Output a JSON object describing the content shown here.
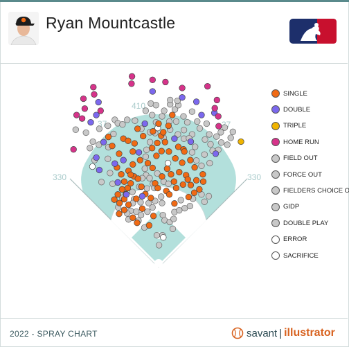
{
  "header": {
    "player_name": "Ryan Mountcastle"
  },
  "footer": {
    "caption": "2022 - SPRAY CHART",
    "brand_word": "savant",
    "brand_sep": "|",
    "brand_product": "illustrator"
  },
  "colors": {
    "field_fill": "#b3e0dc",
    "foul_line": "#a9bcbc",
    "infield": "#ffffff",
    "single": "#f06a14",
    "double": "#7b68ee",
    "triple": "#f0b400",
    "home_run": "#d6338a",
    "out": "#c8c8c8",
    "error": "#ffffff",
    "sacrifice": "#ffffff"
  },
  "chart_data": {
    "type": "scatter",
    "field_markers": [
      {
        "label": "330",
        "side": "left-line"
      },
      {
        "label": "330",
        "side": "right-line"
      },
      {
        "label": "410",
        "side": "center"
      },
      {
        "label": "37",
        "side": "left-center"
      },
      {
        "label": "37",
        "side": "right-center"
      }
    ],
    "legend": [
      {
        "key": "single",
        "label": "SINGLE",
        "color": "#f06a14"
      },
      {
        "key": "double",
        "label": "DOUBLE",
        "color": "#7b68ee"
      },
      {
        "key": "triple",
        "label": "TRIPLE",
        "color": "#f0b400"
      },
      {
        "key": "home_run",
        "label": "HOME RUN",
        "color": "#d6338a"
      },
      {
        "key": "field_out",
        "label": "FIELD OUT",
        "color": "#c8c8c8"
      },
      {
        "key": "force_out",
        "label": "FORCE OUT",
        "color": "#c8c8c8"
      },
      {
        "key": "fc_out",
        "label": "FIELDERS CHOICE OUT",
        "color": "#c8c8c8"
      },
      {
        "key": "gidp",
        "label": "GIDP",
        "color": "#c8c8c8"
      },
      {
        "key": "double_play",
        "label": "DOUBLE PLAY",
        "color": "#c8c8c8"
      },
      {
        "key": "error",
        "label": "ERROR",
        "color": "#ffffff"
      },
      {
        "key": "sacrifice",
        "label": "SACRIFICE",
        "color": "#ffffff"
      }
    ],
    "x_range": [
      -250,
      250
    ],
    "y_range": [
      0,
      450
    ],
    "series": [
      {
        "key": "home_run",
        "points": [
          [
            -191,
            345
          ],
          [
            -172,
            360
          ],
          [
            -175,
            383
          ],
          [
            -150,
            393
          ],
          [
            -152,
            410
          ],
          [
            -178,
            337
          ],
          [
            -135,
            355
          ],
          [
            -63,
            418
          ],
          [
            -62,
            435
          ],
          [
            -14,
            427
          ],
          [
            16,
            422
          ],
          [
            55,
            408
          ],
          [
            114,
            412
          ],
          [
            136,
            380
          ],
          [
            139,
            342
          ],
          [
            131,
            361
          ],
          [
            140,
            319
          ],
          [
            -198,
            265
          ]
        ]
      },
      {
        "key": "double",
        "points": [
          [
            -140,
            375
          ],
          [
            -145,
            345
          ],
          [
            -158,
            328
          ],
          [
            -128,
            282
          ],
          [
            -102,
            232
          ],
          [
            -82,
            240
          ],
          [
            -95,
            188
          ],
          [
            -75,
            160
          ],
          [
            -38,
            156
          ],
          [
            -32,
            325
          ],
          [
            -14,
            400
          ],
          [
            55,
            386
          ],
          [
            88,
            376
          ],
          [
            100,
            345
          ],
          [
            130,
            350
          ],
          [
            75,
            283
          ],
          [
            37,
            290
          ],
          [
            133,
            255
          ],
          [
            -145,
            246
          ],
          [
            -138,
            217
          ],
          [
            -46,
            258
          ]
        ]
      },
      {
        "key": "triple",
        "points": [
          [
            192,
            283
          ]
        ]
      },
      {
        "key": "single",
        "points": [
          [
            -82,
            290
          ],
          [
            -71,
            285
          ],
          [
            -60,
            260
          ],
          [
            -92,
            255
          ],
          [
            -97,
            223
          ],
          [
            -87,
            207
          ],
          [
            -72,
            175
          ],
          [
            -65,
            186
          ],
          [
            -57,
            202
          ],
          [
            -48,
            197
          ],
          [
            -40,
            178
          ],
          [
            -31,
            161
          ],
          [
            -76,
            161
          ],
          [
            -85,
            172
          ],
          [
            -80,
            190
          ],
          [
            -70,
            215
          ],
          [
            -60,
            230
          ],
          [
            -43,
            240
          ],
          [
            -25,
            233
          ],
          [
            -14,
            222
          ],
          [
            -5,
            250
          ],
          [
            6,
            297
          ],
          [
            0,
            325
          ],
          [
            11,
            305
          ],
          [
            15,
            282
          ],
          [
            7,
            261
          ],
          [
            -3,
            280
          ],
          [
            20,
            220
          ],
          [
            29,
            207
          ],
          [
            36,
            190
          ],
          [
            41,
            175
          ],
          [
            48,
            212
          ],
          [
            64,
            205
          ],
          [
            68,
            195
          ],
          [
            57,
            183
          ],
          [
            75,
            182
          ],
          [
            83,
            164
          ],
          [
            95,
            172
          ],
          [
            88,
            193
          ],
          [
            84,
            223
          ],
          [
            74,
            240
          ],
          [
            55,
            234
          ],
          [
            39,
            244
          ],
          [
            24,
            260
          ],
          [
            46,
            271
          ],
          [
            58,
            265
          ],
          [
            104,
            190
          ],
          [
            103,
            207
          ],
          [
            70,
            154
          ],
          [
            37,
            139
          ],
          [
            -18,
            152
          ],
          [
            -52,
            150
          ],
          [
            -13,
            307
          ],
          [
            -36,
            296
          ],
          [
            -49,
            313
          ],
          [
            -56,
            279
          ],
          [
            -65,
            206
          ],
          [
            -108,
            273
          ],
          [
            -117,
            294
          ],
          [
            -38,
            127
          ],
          [
            -70,
            136
          ],
          [
            -80,
            124
          ],
          [
            -103,
            148
          ],
          [
            -92,
            115
          ],
          [
            -60,
            106
          ],
          [
            -50,
            94
          ],
          [
            -12,
            110
          ],
          [
            -22,
            88
          ],
          [
            -8,
            186
          ],
          [
            18,
            168
          ],
          [
            25,
            160
          ],
          [
            -2,
            175
          ],
          [
            8,
            202
          ],
          [
            -15,
            268
          ],
          [
            23,
            320
          ],
          [
            32,
            345
          ],
          [
            60,
            260
          ],
          [
            -80,
            149
          ],
          [
            -95,
            160
          ],
          [
            -91,
            140
          ]
        ]
      },
      {
        "key": "out",
        "points": [
          [
            -193,
            311
          ],
          [
            -169,
            304
          ],
          [
            -138,
            313
          ],
          [
            -153,
            283
          ],
          [
            -139,
            276
          ],
          [
            -118,
            320
          ],
          [
            -102,
            334
          ],
          [
            -117,
            270
          ],
          [
            -105,
            301
          ],
          [
            -95,
            326
          ],
          [
            -84,
            323
          ],
          [
            -73,
            334
          ],
          [
            -55,
            332
          ],
          [
            -40,
            313
          ],
          [
            -30,
            355
          ],
          [
            -18,
            372
          ],
          [
            -6,
            368
          ],
          [
            -15,
            345
          ],
          [
            -6,
            328
          ],
          [
            8,
            342
          ],
          [
            13,
            355
          ],
          [
            27,
            370
          ],
          [
            38,
            358
          ],
          [
            46,
            368
          ],
          [
            27,
            380
          ],
          [
            44,
            378
          ],
          [
            58,
            342
          ],
          [
            67,
            328
          ],
          [
            78,
            353
          ],
          [
            90,
            330
          ],
          [
            96,
            314
          ],
          [
            112,
            325
          ],
          [
            118,
            300
          ],
          [
            108,
            288
          ],
          [
            121,
            277
          ],
          [
            126,
            262
          ],
          [
            139,
            264
          ],
          [
            146,
            281
          ],
          [
            160,
            276
          ],
          [
            135,
            295
          ],
          [
            145,
            305
          ],
          [
            154,
            316
          ],
          [
            168,
            292
          ],
          [
            173,
            306
          ],
          [
            119,
            233
          ],
          [
            100,
            227
          ],
          [
            88,
            239
          ],
          [
            107,
            253
          ],
          [
            59,
            290
          ],
          [
            78,
            300
          ],
          [
            85,
            271
          ],
          [
            78,
            258
          ],
          [
            71,
            291
          ],
          [
            59,
            310
          ],
          [
            45,
            300
          ],
          [
            27,
            311
          ],
          [
            41,
            330
          ],
          [
            25,
            330
          ],
          [
            12,
            292
          ],
          [
            -8,
            303
          ],
          [
            -20,
            305
          ],
          [
            -20,
            282
          ],
          [
            -28,
            264
          ],
          [
            -30,
            248
          ],
          [
            -32,
            220
          ],
          [
            -29,
            205
          ],
          [
            -45,
            178
          ],
          [
            -38,
            198
          ],
          [
            -21,
            198
          ],
          [
            -13,
            185
          ],
          [
            -3,
            209
          ],
          [
            12,
            190
          ],
          [
            23,
            185
          ],
          [
            6,
            155
          ],
          [
            -27,
            174
          ],
          [
            -10,
            175
          ],
          [
            -61,
            166
          ],
          [
            -57,
            149
          ],
          [
            -65,
            122
          ],
          [
            -73,
            116
          ],
          [
            -60,
            140
          ],
          [
            -42,
            142
          ],
          [
            -23,
            140
          ],
          [
            -8,
            145
          ],
          [
            8,
            140
          ],
          [
            10,
            112
          ],
          [
            14,
            100
          ],
          [
            -14,
            130
          ],
          [
            -26,
            120
          ],
          [
            -41,
            112
          ],
          [
            -47,
            99
          ],
          [
            -52,
            120
          ],
          [
            -84,
            152
          ],
          [
            -94,
            130
          ],
          [
            -70,
            102
          ],
          [
            -33,
            83
          ],
          [
            -4,
            65
          ],
          [
            1,
            42
          ],
          [
            9,
            65
          ],
          [
            26,
            96
          ],
          [
            35,
            103
          ],
          [
            33,
            80
          ],
          [
            37,
            119
          ],
          [
            48,
            123
          ],
          [
            52,
            147
          ],
          [
            61,
            128
          ],
          [
            73,
            133
          ],
          [
            80,
            150
          ],
          [
            100,
            160
          ],
          [
            107,
            143
          ],
          [
            117,
            156
          ],
          [
            -118,
            243
          ],
          [
            -149,
            240
          ],
          [
            -160,
            268
          ],
          [
            -113,
            210
          ],
          [
            -133,
            189
          ],
          [
            -107,
            185
          ]
        ]
      },
      {
        "key": "error",
        "points": [
          [
            -2,
            315
          ],
          [
            22,
            233
          ],
          [
            11,
            60
          ],
          [
            -154,
            225
          ]
        ]
      },
      {
        "key": "sacrifice",
        "points": []
      }
    ]
  }
}
